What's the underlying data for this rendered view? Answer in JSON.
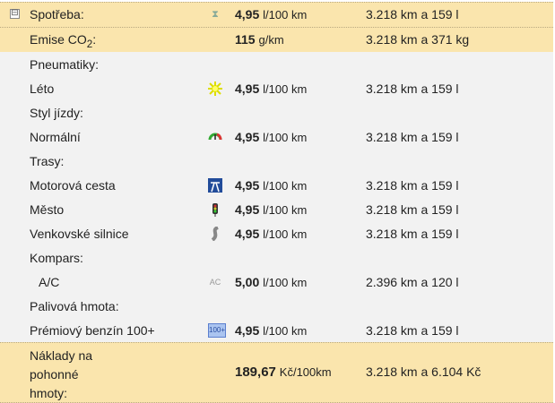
{
  "summary": [
    {
      "label": "Spotřeba:",
      "icon": "hourglass-icon",
      "value": "4,95",
      "unit": "l/100 km",
      "detail": "3.218 km a 159 l",
      "toggle": "⊟"
    },
    {
      "label": "Emise CO",
      "sub": "2",
      "suffix": ":",
      "value": "115",
      "unit": "g/km",
      "detail": "3.218 km a 371 kg"
    }
  ],
  "rows": [
    {
      "label": "Pneumatiky:"
    },
    {
      "label": "Léto",
      "icon": "sun-icon",
      "value": "4,95",
      "unit": "l/100 km",
      "detail": "3.218 km a 159 l"
    },
    {
      "label": "Styl jízdy:"
    },
    {
      "label": "Normální",
      "icon": "gauge-icon",
      "value": "4,95",
      "unit": "l/100 km",
      "detail": "3.218 km a 159 l"
    },
    {
      "label": "Trasy:"
    },
    {
      "label": "Motorová cesta",
      "icon": "highway-icon",
      "value": "4,95",
      "unit": "l/100 km",
      "detail": "3.218 km a 159 l"
    },
    {
      "label": "Město",
      "icon": "traffic-light-icon",
      "value": "4,95",
      "unit": "l/100 km",
      "detail": "3.218 km a 159 l"
    },
    {
      "label": "Venkovské silnice",
      "icon": "winding-road-icon",
      "value": "4,95",
      "unit": "l/100 km",
      "detail": "3.218 km a 159 l"
    },
    {
      "label": "Kompars:"
    },
    {
      "label": "A/C",
      "icon": "ac-icon",
      "icon_text": "AC",
      "indent": true,
      "value": "5,00",
      "unit": "l/100 km",
      "detail": "2.396 km a 120 l"
    },
    {
      "label": "Palivová hmota:"
    },
    {
      "label": "Prémiový benzín 100+",
      "icon": "fuel-100-icon",
      "icon_text": "100+",
      "value": "4,95",
      "unit": "l/100 km",
      "detail": "3.218 km a 159 l"
    }
  ],
  "cost": {
    "label_lines": [
      "Náklady na",
      "pohonné",
      "hmoty:"
    ],
    "value": "189,67",
    "unit": "Kč/100km",
    "detail": "3.218 km a 6.104 Kč"
  }
}
